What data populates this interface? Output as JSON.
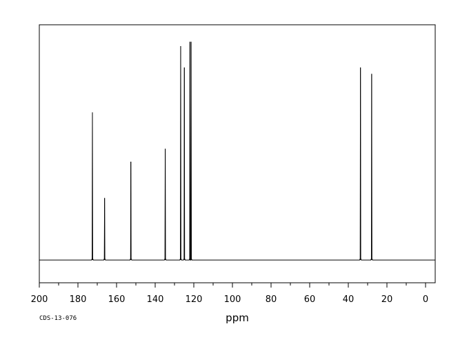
{
  "chart_data": {
    "type": "line",
    "title": "",
    "xlabel": "ppm",
    "ylabel": "",
    "xlim": [
      200,
      -5
    ],
    "x_reversed": true,
    "ylim": [
      0,
      1
    ],
    "grid": false,
    "legend": "none",
    "x_ticks": [
      200,
      180,
      160,
      140,
      120,
      100,
      80,
      60,
      40,
      20,
      0
    ],
    "x_tick_labels": [
      "200",
      "180",
      "160",
      "140",
      "120",
      "100",
      "80",
      "60",
      "40",
      "20",
      "0"
    ],
    "series": [
      {
        "peaks": [
          {
            "x": 172.5,
            "y": 0.69
          },
          {
            "x": 166.2,
            "y": 0.29
          },
          {
            "x": 152.6,
            "y": 0.46
          },
          {
            "x": 134.8,
            "y": 0.52
          },
          {
            "x": 126.8,
            "y": 1.0
          },
          {
            "x": 124.9,
            "y": 0.9
          },
          {
            "x": 122.0,
            "y": 1.02
          },
          {
            "x": 121.4,
            "y": 1.02
          },
          {
            "x": 33.7,
            "y": 0.9
          },
          {
            "x": 27.9,
            "y": 0.87
          }
        ]
      }
    ]
  },
  "footer": {
    "code": "CDS-13-076"
  },
  "colors": {
    "line": "#000000",
    "frame": "#000000",
    "background": "#ffffff"
  }
}
